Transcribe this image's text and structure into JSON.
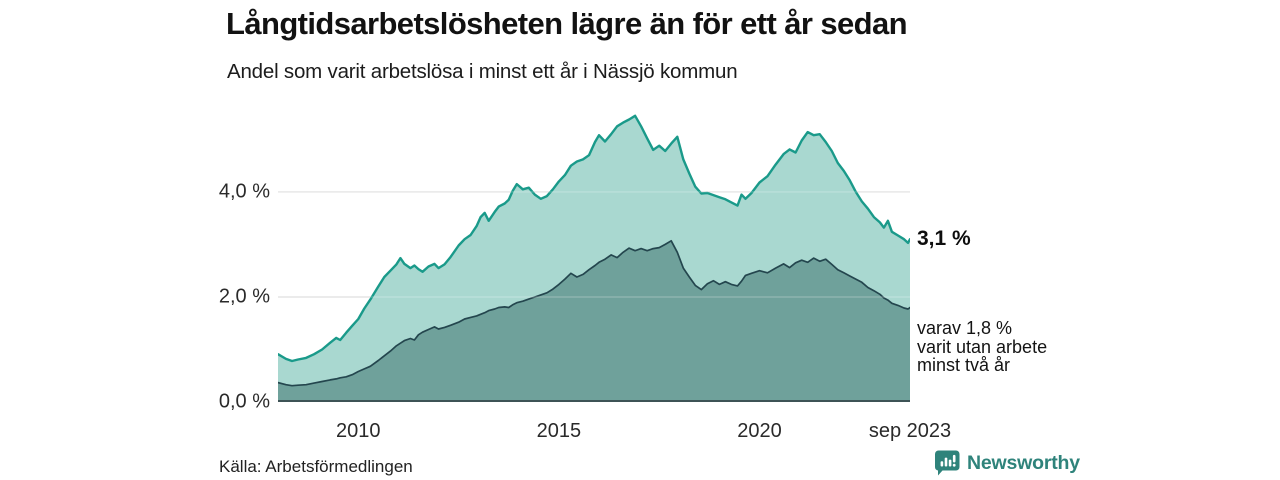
{
  "header": {
    "title": "Långtidsarbetslösheten lägre än för ett år sedan",
    "subtitle": "Andel som varit arbetslösa i minst ett år i Nässjö kommun"
  },
  "chart_data": {
    "type": "area",
    "title": "Långtidsarbetslösheten lägre än för ett år sedan",
    "subtitle": "Andel som varit arbetslösa i minst ett år i Nässjö kommun",
    "x_unit": "decimal_year",
    "x_domain": [
      2008.0,
      2023.75
    ],
    "ylim": [
      0,
      5.56
    ],
    "grid": true,
    "yticks": [
      {
        "value": 0,
        "label": "0,0 %"
      },
      {
        "value": 2,
        "label": "2,0 %"
      },
      {
        "value": 4,
        "label": "4,0 %"
      }
    ],
    "xticks": [
      {
        "value": 2010,
        "label": "2010"
      },
      {
        "value": 2015,
        "label": "2015"
      },
      {
        "value": 2020,
        "label": "2020"
      },
      {
        "value": 2023.75,
        "label": "sep 2023"
      }
    ],
    "x": [
      2008.0,
      2008.2,
      2008.35,
      2008.5,
      2008.7,
      2008.9,
      2009.1,
      2009.3,
      2009.45,
      2009.55,
      2009.7,
      2009.85,
      2010.0,
      2010.15,
      2010.3,
      2010.5,
      2010.65,
      2010.8,
      2010.95,
      2011.05,
      2011.15,
      2011.3,
      2011.4,
      2011.5,
      2011.6,
      2011.75,
      2011.9,
      2012.0,
      2012.15,
      2012.3,
      2012.5,
      2012.65,
      2012.8,
      2012.95,
      2013.05,
      2013.15,
      2013.25,
      2013.4,
      2013.5,
      2013.65,
      2013.75,
      2013.85,
      2013.95,
      2014.1,
      2014.25,
      2014.4,
      2014.55,
      2014.7,
      2014.85,
      2015.0,
      2015.15,
      2015.3,
      2015.45,
      2015.6,
      2015.75,
      2015.9,
      2016.0,
      2016.15,
      2016.3,
      2016.45,
      2016.6,
      2016.75,
      2016.9,
      2017.05,
      2017.2,
      2017.35,
      2017.5,
      2017.65,
      2017.8,
      2017.95,
      2018.1,
      2018.25,
      2018.4,
      2018.55,
      2018.7,
      2018.85,
      2019.0,
      2019.15,
      2019.3,
      2019.45,
      2019.55,
      2019.65,
      2019.8,
      2020.0,
      2020.2,
      2020.4,
      2020.6,
      2020.75,
      2020.9,
      2021.05,
      2021.2,
      2021.35,
      2021.5,
      2021.65,
      2021.8,
      2021.95,
      2022.1,
      2022.25,
      2022.4,
      2022.55,
      2022.7,
      2022.85,
      2023.0,
      2023.1,
      2023.2,
      2023.3,
      2023.45,
      2023.6,
      2023.7,
      2023.75
    ],
    "series": [
      {
        "name": "Andel som varit arbetslösa i minst ett år",
        "fill": "#a9d8d0",
        "stroke": "#1a9a8a",
        "stroke_width": 2.4,
        "values": [
          0.91,
          0.82,
          0.78,
          0.81,
          0.84,
          0.91,
          1.0,
          1.13,
          1.22,
          1.18,
          1.32,
          1.45,
          1.58,
          1.78,
          1.95,
          2.2,
          2.38,
          2.5,
          2.62,
          2.74,
          2.63,
          2.55,
          2.6,
          2.53,
          2.48,
          2.58,
          2.63,
          2.55,
          2.62,
          2.76,
          2.98,
          3.1,
          3.18,
          3.35,
          3.52,
          3.6,
          3.45,
          3.62,
          3.72,
          3.78,
          3.85,
          4.02,
          4.15,
          4.05,
          4.08,
          3.95,
          3.87,
          3.92,
          4.05,
          4.2,
          4.32,
          4.5,
          4.58,
          4.62,
          4.7,
          4.95,
          5.08,
          4.96,
          5.1,
          5.25,
          5.32,
          5.38,
          5.45,
          5.25,
          5.02,
          4.8,
          4.88,
          4.78,
          4.92,
          5.05,
          4.62,
          4.35,
          4.1,
          3.97,
          3.98,
          3.94,
          3.9,
          3.86,
          3.8,
          3.74,
          3.95,
          3.87,
          3.98,
          4.18,
          4.3,
          4.52,
          4.72,
          4.81,
          4.75,
          4.98,
          5.14,
          5.08,
          5.1,
          4.95,
          4.78,
          4.55,
          4.4,
          4.22,
          4.0,
          3.82,
          3.68,
          3.52,
          3.42,
          3.32,
          3.45,
          3.24,
          3.17,
          3.1,
          3.03,
          3.1
        ]
      },
      {
        "name": "varav utan arbete minst två år",
        "fill": "#6fa19b",
        "stroke": "#24464e",
        "stroke_width": 1.7,
        "values": [
          0.37,
          0.33,
          0.31,
          0.32,
          0.33,
          0.36,
          0.39,
          0.42,
          0.44,
          0.46,
          0.48,
          0.52,
          0.58,
          0.63,
          0.68,
          0.79,
          0.88,
          0.97,
          1.07,
          1.12,
          1.17,
          1.21,
          1.18,
          1.28,
          1.33,
          1.38,
          1.43,
          1.39,
          1.42,
          1.46,
          1.52,
          1.58,
          1.61,
          1.64,
          1.67,
          1.7,
          1.74,
          1.77,
          1.8,
          1.81,
          1.8,
          1.85,
          1.89,
          1.92,
          1.96,
          2.0,
          2.04,
          2.08,
          2.15,
          2.24,
          2.34,
          2.45,
          2.38,
          2.43,
          2.52,
          2.6,
          2.66,
          2.72,
          2.8,
          2.75,
          2.85,
          2.93,
          2.88,
          2.92,
          2.88,
          2.92,
          2.94,
          3.0,
          3.07,
          2.85,
          2.55,
          2.38,
          2.22,
          2.14,
          2.25,
          2.31,
          2.24,
          2.29,
          2.24,
          2.21,
          2.3,
          2.41,
          2.45,
          2.5,
          2.46,
          2.55,
          2.63,
          2.56,
          2.65,
          2.7,
          2.66,
          2.74,
          2.68,
          2.72,
          2.62,
          2.52,
          2.46,
          2.4,
          2.34,
          2.28,
          2.18,
          2.12,
          2.05,
          1.98,
          1.94,
          1.88,
          1.84,
          1.79,
          1.77,
          1.8
        ]
      }
    ],
    "end_labels": {
      "total": "3,1 %",
      "two_year_line1": "varav 1,8 %",
      "two_year_line2": "varit utan arbete",
      "two_year_line3": "minst två år"
    },
    "colors": {
      "grid": "#d7d7d7",
      "grid_over_fill": "rgba(255,255,255,0.25)",
      "axis_line": "#3e5356"
    },
    "last_values": {
      "total_pct": 3.1,
      "two_year_pct": 1.8,
      "last_period": "sep 2023"
    }
  },
  "source": {
    "text": "Källa: Arbetsförmedlingen"
  },
  "logo": {
    "text": "Newsworthy",
    "color": "#2f837b"
  }
}
